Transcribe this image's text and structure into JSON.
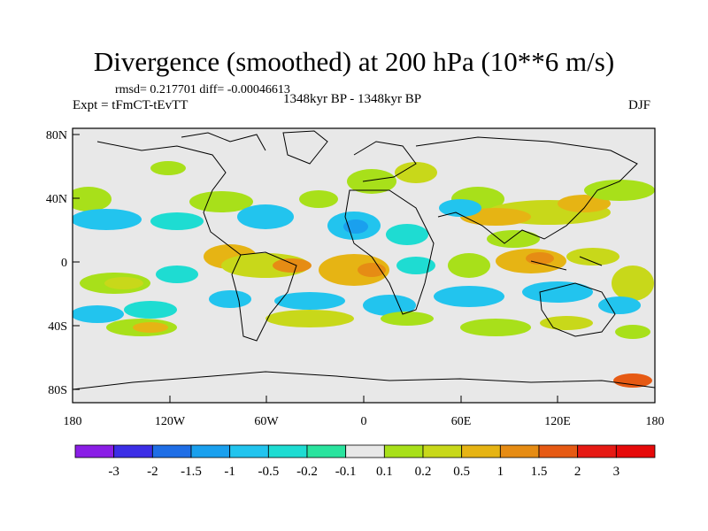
{
  "title": "Divergence (smoothed) at 200 hPa (10**6 m/s)",
  "stats": "rmsd= 0.217701 diff= -0.00046613",
  "experiment": "Expt = tFmCT-tEvTT",
  "period": "1348kyr BP - 1348kyr BP",
  "season": "DJF",
  "lat_labels": [
    "80N",
    "40N",
    "0",
    "40S",
    "80S"
  ],
  "lon_labels": [
    "180",
    "120W",
    "60W",
    "0",
    "60E",
    "120E",
    "180"
  ],
  "colorbar": {
    "labels": [
      "-3",
      "-2",
      "-1.5",
      "-1",
      "-0.5",
      "-0.2",
      "-0.1",
      "0.1",
      "0.2",
      "0.5",
      "1",
      "1.5",
      "2",
      "3"
    ],
    "colors": [
      "#8a1ee6",
      "#3c2ee6",
      "#1f6ee6",
      "#1aa0ee",
      "#22c4ee",
      "#1edcd2",
      "#2ae39e",
      "#e8e8e8",
      "#a8e01a",
      "#c8d81a",
      "#e6b414",
      "#e68c14",
      "#e65a14",
      "#e61a14",
      "#e60a0a"
    ]
  }
}
